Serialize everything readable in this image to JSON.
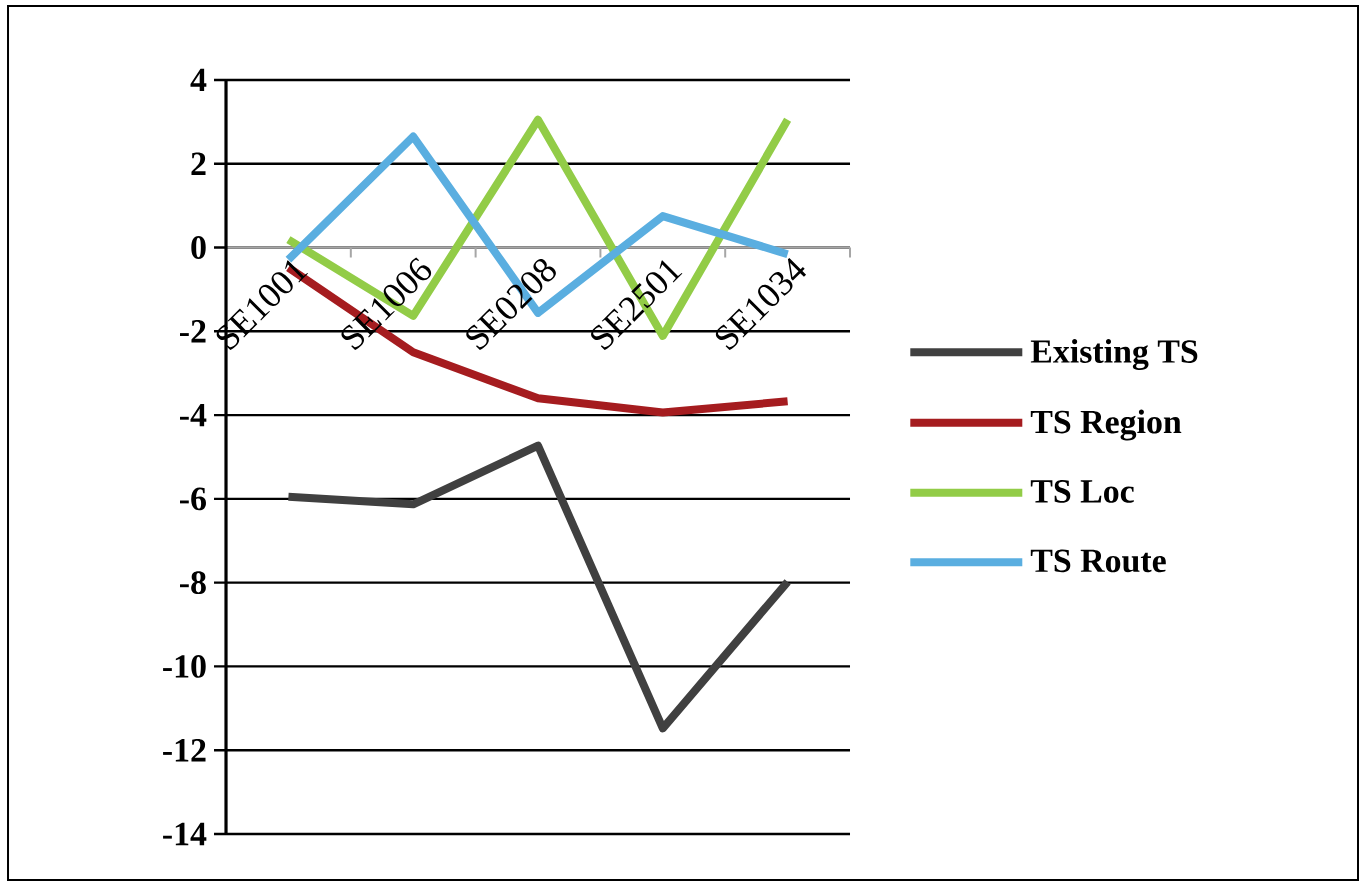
{
  "chart_data": {
    "type": "line",
    "categories": [
      "SE1001",
      "SE1006",
      "SE0208",
      "SE2501",
      "SE1034"
    ],
    "series": [
      {
        "name": "Existing TS",
        "color": "#404040",
        "values": [
          -5.95,
          -6.13,
          -4.73,
          -11.48,
          -7.98
        ]
      },
      {
        "name": "TS Region",
        "color": "#a51c1f",
        "values": [
          -0.48,
          -2.5,
          -3.6,
          -3.94,
          -3.67
        ]
      },
      {
        "name": "TS Loc",
        "color": "#92cc47",
        "values": [
          0.19,
          -1.63,
          3.05,
          -2.11,
          3.05
        ]
      },
      {
        "name": "TS Route",
        "color": "#5aaee0",
        "values": [
          -0.29,
          2.65,
          -1.56,
          0.75,
          -0.16
        ]
      }
    ],
    "ylim": [
      -14,
      4
    ],
    "yticks": [
      -14,
      -12,
      -10,
      -8,
      -6,
      -4,
      -2,
      0,
      2,
      4
    ],
    "grid": "y",
    "legend": "right",
    "marker": "none",
    "line_style": "solid"
  }
}
